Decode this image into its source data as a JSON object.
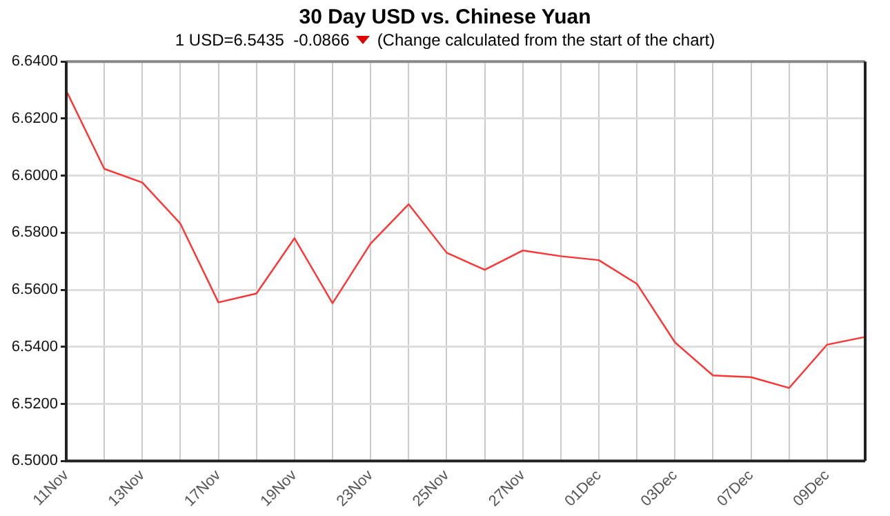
{
  "chart_data": {
    "type": "line",
    "title": "30 Day USD vs. Chinese Yuan",
    "subtitle": "1 USD=6.5435  -0.0866",
    "annotations": [
      "(Change calculated from the start of the chart)"
    ],
    "categories": [
      "11Nov",
      null,
      "13Nov",
      null,
      "17Nov",
      null,
      "19Nov",
      null,
      "23Nov",
      null,
      "25Nov",
      null,
      "27Nov",
      null,
      "01Dec",
      null,
      "03Dec",
      null,
      "07Dec",
      null,
      "09Dec",
      null
    ],
    "series": [
      {
        "color": "#ff3333",
        "values": [
          6.6298,
          6.6024,
          6.5976,
          6.5832,
          6.5556,
          6.5587,
          6.5781,
          6.5553,
          6.5762,
          6.59,
          6.573,
          6.567,
          6.5738,
          6.5718,
          6.5704,
          6.5621,
          6.5416,
          6.53,
          6.5294,
          6.5256,
          6.5408,
          6.5435
        ]
      }
    ],
    "ylim": [
      6.5,
      6.64
    ],
    "yticks": [
      {
        "value": 6.5,
        "label": "6.5000"
      },
      {
        "value": 6.52,
        "label": "6.5200"
      },
      {
        "value": 6.54,
        "label": "6.5400"
      },
      {
        "value": 6.56,
        "label": "6.5600"
      },
      {
        "value": 6.58,
        "label": "6.5800"
      },
      {
        "value": 6.6,
        "label": "6.6000"
      },
      {
        "value": 6.62,
        "label": "6.6200"
      },
      {
        "value": 6.64,
        "label": "6.6400"
      }
    ],
    "grid": true,
    "legend": false,
    "marker": "none",
    "line_style": "solid"
  }
}
